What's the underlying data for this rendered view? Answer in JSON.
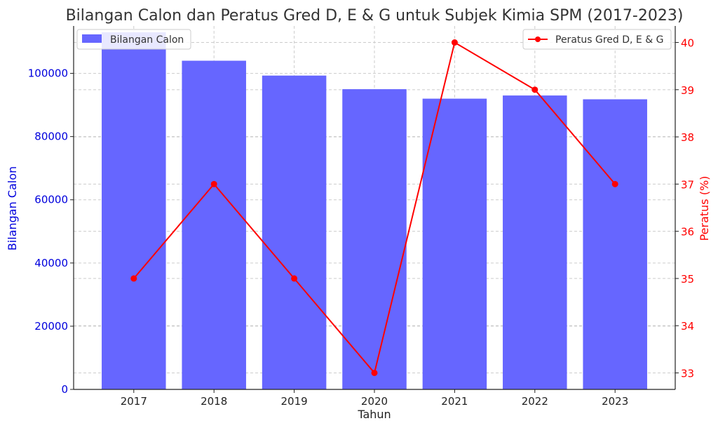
{
  "chart_data": {
    "type": "bar+line",
    "title": "Bilangan Calon dan Peratus Gred D, E & G untuk Subjek Kimia SPM (2017-2023)",
    "xlabel": "Tahun",
    "categories": [
      "2017",
      "2018",
      "2019",
      "2020",
      "2021",
      "2022",
      "2023"
    ],
    "bar_series": {
      "name": "Bilangan Calon",
      "values": [
        113000,
        104000,
        99300,
        95000,
        92000,
        93000,
        91800
      ],
      "color": "#6666ff"
    },
    "line_series": {
      "name": "Peratus Gred D, E & G",
      "values": [
        35,
        37,
        35,
        33,
        40,
        39,
        37
      ],
      "color": "#ff0000"
    },
    "y_left": {
      "label": "Bilangan Calon",
      "ticks": [
        0,
        20000,
        40000,
        60000,
        80000,
        100000
      ],
      "ylim": [
        0,
        115000
      ],
      "color": "#0000dd"
    },
    "y_right": {
      "label": "Peratus (%)",
      "ticks": [
        33,
        34,
        35,
        36,
        37,
        38,
        39,
        40
      ],
      "ylim": [
        32.65,
        40.35
      ],
      "color": "#ff0000"
    },
    "grid": true,
    "legend_bar_position": "top-left",
    "legend_line_position": "top-right"
  }
}
